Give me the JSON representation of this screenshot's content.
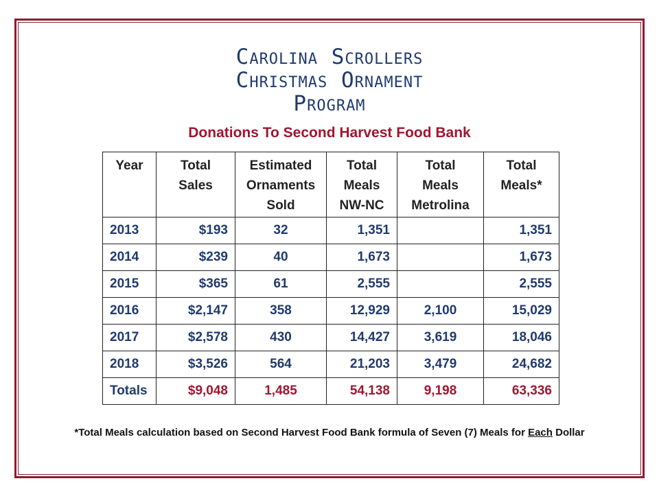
{
  "title_lines": [
    "Carolina Scrollers",
    "Christmas Ornament",
    "Program"
  ],
  "subtitle": "Donations To Second Harvest Food Bank",
  "colors": {
    "navy": "#1f3a6e",
    "crimson": "#a01530",
    "border": "#8a1c2e"
  },
  "table": {
    "headers": [
      [
        "Year"
      ],
      [
        "Total",
        "Sales"
      ],
      [
        "Estimated",
        "Ornaments",
        "Sold"
      ],
      [
        "Total",
        "Meals",
        "NW-NC"
      ],
      [
        "Total",
        "Meals",
        "Metrolina"
      ],
      [
        "Total",
        "Meals*"
      ]
    ],
    "rows": [
      {
        "year": "2013",
        "sales": "$193",
        "ornaments": "32",
        "nwnc": "1,351",
        "metrolina": "",
        "meals": "1,351"
      },
      {
        "year": "2014",
        "sales": "$239",
        "ornaments": "40",
        "nwnc": "1,673",
        "metrolina": "",
        "meals": "1,673"
      },
      {
        "year": "2015",
        "sales": "$365",
        "ornaments": "61",
        "nwnc": "2,555",
        "metrolina": "",
        "meals": "2,555"
      },
      {
        "year": "2016",
        "sales": "$2,147",
        "ornaments": "358",
        "nwnc": "12,929",
        "metrolina": "2,100",
        "meals": "15,029"
      },
      {
        "year": "2017",
        "sales": "$2,578",
        "ornaments": "430",
        "nwnc": "14,427",
        "metrolina": "3,619",
        "meals": "18,046"
      },
      {
        "year": "2018",
        "sales": "$3,526",
        "ornaments": "564",
        "nwnc": "21,203",
        "metrolina": "3,479",
        "meals": "24,682"
      }
    ],
    "totals": {
      "year": "Totals",
      "sales": "$9,048",
      "ornaments": "1,485",
      "nwnc": "54,138",
      "metrolina": "9,198",
      "meals": "63,336"
    }
  },
  "footnote": {
    "before": "*Total Meals calculation based on Second Harvest Food Bank formula of Seven (7) Meals for ",
    "underlined": "Each",
    "after": " Dollar"
  }
}
